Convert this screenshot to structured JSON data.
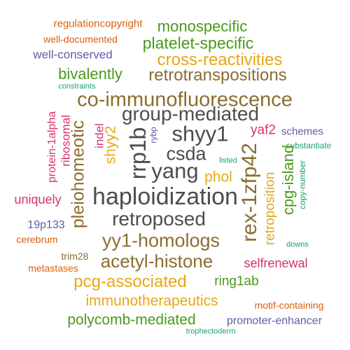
{
  "colors": {
    "dark_gray": "#4d4d4d",
    "brown": "#8c6d31",
    "green": "#4a9a1a",
    "gold": "#e6a817",
    "orange": "#d95f0e",
    "purple": "#5e5ca8",
    "magenta": "#d6336c",
    "teal": "#1b9e77"
  },
  "words": [
    "regulationcopyright",
    "well-documented",
    "well-conserved",
    "constraints",
    "monospecific",
    "platelet-specific",
    "cross-reactivities",
    "bivalently",
    "retrotranspositions",
    "co-immunofluorescence",
    "group-mediated",
    "shyy1",
    "rrp1b",
    "yaf2",
    "schemes",
    "substantiate",
    "protein-1alpha",
    "ribosomal",
    "pleiohomeotic",
    "indel",
    "shyy2",
    "rybp",
    "csda",
    "listed",
    "rex-1zfp42",
    "cpg-island",
    "copy-number",
    "yang",
    "phol",
    "retroposition",
    "uniquely",
    "haploidization",
    "retroposed",
    "19p133",
    "cerebrum",
    "yy1-homologs",
    "downs",
    "trim28",
    "acetyl-histone",
    "selfrenewal",
    "metastases",
    "pcg-associated",
    "ring1ab",
    "immunotherapeutics",
    "motif-containing",
    "polycomb-mediated",
    "promoter-enhancer",
    "trophectoderm"
  ]
}
